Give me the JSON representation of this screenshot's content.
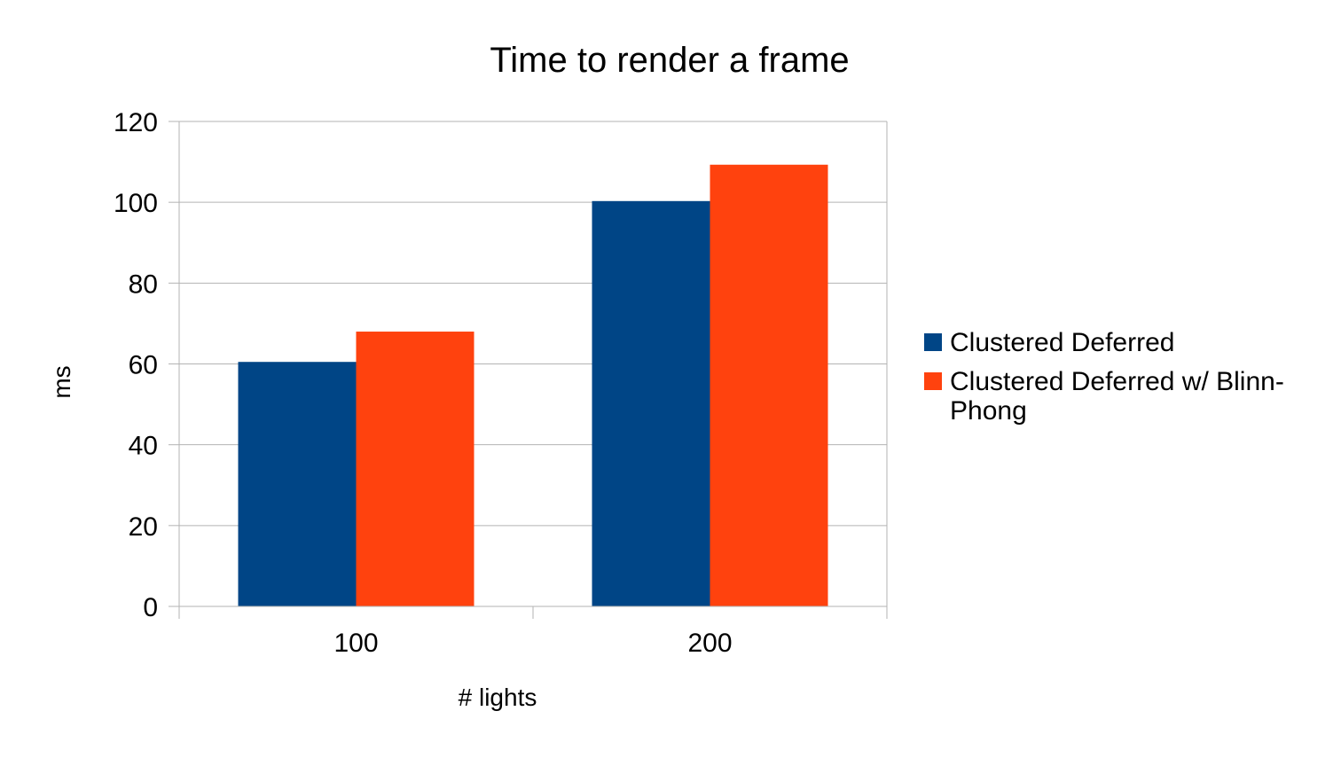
{
  "chart_data": {
    "type": "bar",
    "title": "Time to render a frame",
    "xlabel": "# lights",
    "ylabel": "ms",
    "categories": [
      "100",
      "200"
    ],
    "series": [
      {
        "name": "Clustered Deferred",
        "color": "#004586",
        "values": [
          60.5,
          100.3
        ]
      },
      {
        "name": "Clustered Deferred w/ Blinn-Phong",
        "legend_lines": [
          "Clustered Deferred w/ Blinn-",
          "Phong"
        ],
        "color": "#ff420e",
        "values": [
          68,
          109.3
        ]
      }
    ],
    "ylim": [
      0,
      120
    ],
    "yticks": [
      0,
      20,
      40,
      60,
      80,
      100,
      120
    ],
    "grid": true,
    "legend_position": "right"
  }
}
